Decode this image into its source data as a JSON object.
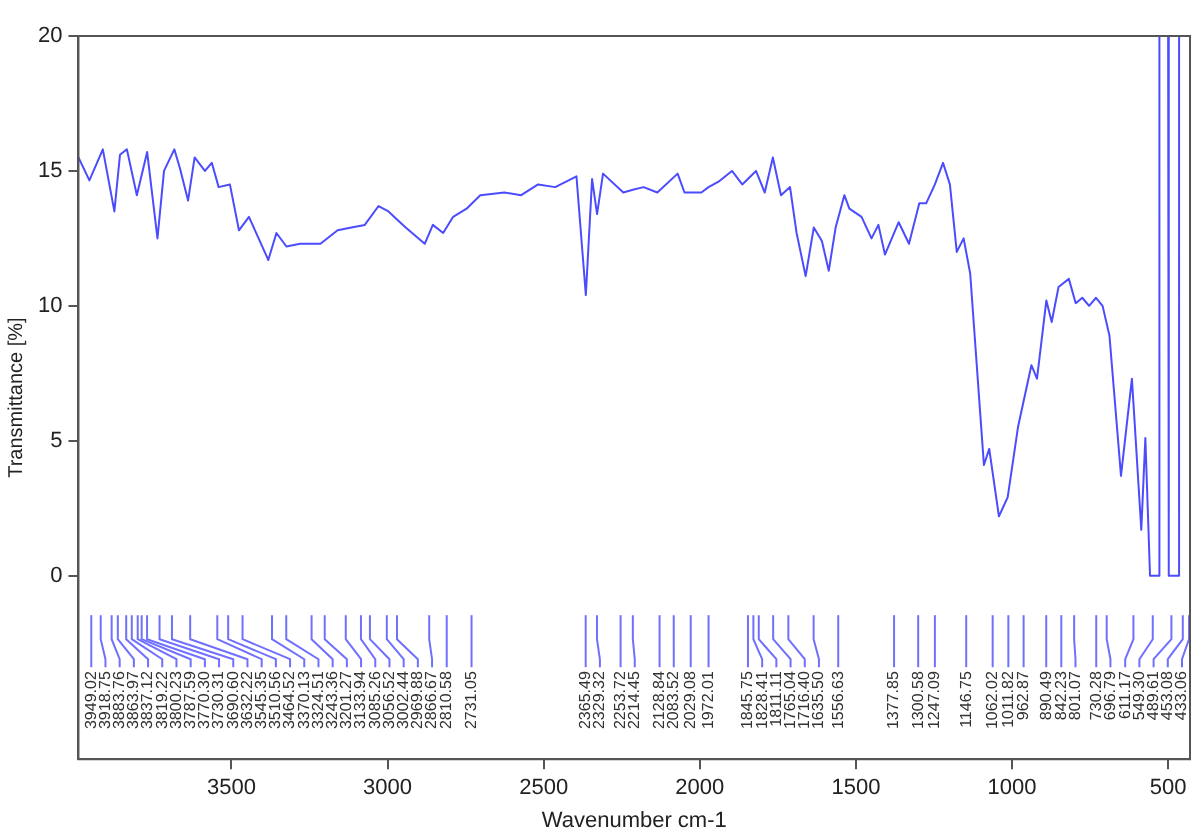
{
  "chart_data": {
    "type": "line",
    "xlabel": "Wavenumber cm-1",
    "ylabel": "Transmittance [%]",
    "xlim": [
      3990,
      430
    ],
    "ylim": [
      -6.8,
      20
    ],
    "xticks": [
      3500,
      3000,
      2500,
      2000,
      1500,
      1000,
      500
    ],
    "yticks": [
      0,
      5,
      10,
      15,
      20
    ],
    "grid": false,
    "legend": false,
    "marker": "none",
    "series": [
      {
        "color": "#4c4cff",
        "x": [
          3990,
          3955,
          3912,
          3875,
          3857,
          3835,
          3803,
          3770,
          3737,
          3716,
          3683,
          3665,
          3639,
          3618,
          3585,
          3563,
          3541,
          3505,
          3476,
          3444,
          3382,
          3356,
          3324,
          3280,
          3243.36,
          3215,
          3160,
          3116,
          3073,
          3029,
          2997,
          2969.88,
          2942,
          2881,
          2855,
          2822,
          2790,
          2747,
          2703,
          2626,
          2572,
          2518,
          2463,
          2395,
          2365,
          2345,
          2329,
          2310,
          2245,
          2214.45,
          2180,
          2136,
          2071,
          2049,
          2029.08,
          1995,
          1972.01,
          1940,
          1897,
          1864,
          1820,
          1792,
          1766,
          1740,
          1711,
          1690,
          1661,
          1635,
          1609,
          1587,
          1565,
          1537,
          1521,
          1482,
          1450,
          1428,
          1407,
          1363,
          1330,
          1297,
          1275,
          1247.09,
          1221,
          1199,
          1177,
          1155,
          1134,
          1090,
          1073,
          1042,
          1014,
          981,
          938,
          920,
          890,
          873,
          851,
          818,
          796,
          775,
          753,
          731,
          710,
          688,
          651,
          616,
          586,
          573,
          558,
          530,
          528,
          500,
          498,
          467,
          465,
          441
        ],
        "values": [
          15.5,
          14.65,
          15.8,
          13.5,
          15.6,
          15.8,
          14.1,
          15.7,
          12.5,
          15.0,
          15.8,
          15.1,
          13.9,
          15.5,
          15.0,
          15.3,
          14.4,
          14.5,
          12.8,
          13.3,
          11.7,
          12.7,
          12.2,
          12.3,
          12.3,
          12.3,
          12.8,
          12.9,
          13.0,
          13.7,
          13.5,
          13.2,
          12.9,
          12.3,
          13.0,
          12.7,
          13.3,
          13.6,
          14.1,
          14.2,
          14.1,
          14.5,
          14.4,
          14.8,
          10.4,
          14.7,
          13.4,
          14.9,
          14.2,
          14.3,
          14.4,
          14.2,
          14.9,
          14.2,
          14.2,
          14.2,
          14.4,
          14.6,
          15.0,
          14.5,
          15.0,
          14.2,
          15.5,
          14.1,
          14.4,
          12.7,
          11.1,
          12.9,
          12.4,
          11.3,
          12.9,
          14.1,
          13.6,
          13.3,
          12.5,
          13.0,
          11.9,
          13.1,
          12.3,
          13.8,
          13.8,
          14.5,
          15.3,
          14.5,
          12.0,
          12.5,
          11.2,
          4.1,
          4.7,
          2.2,
          2.9,
          5.5,
          7.8,
          7.3,
          10.2,
          9.4,
          10.7,
          11.0,
          10.1,
          10.3,
          10.0,
          10.3,
          10.0,
          8.9,
          3.7,
          7.3,
          1.7,
          5.1,
          0,
          0,
          20,
          20,
          0,
          0,
          20,
          20
        ]
      }
    ],
    "annotations": [
      {
        "text": "3949.02",
        "x": 3949.02
      },
      {
        "text": "3918.75",
        "x": 3918.75
      },
      {
        "text": "3883.76",
        "x": 3883.76
      },
      {
        "text": "3863.97",
        "x": 3863.97
      },
      {
        "text": "3837.12",
        "x": 3837.12
      },
      {
        "text": "3819.22",
        "x": 3819.22
      },
      {
        "text": "3800.23",
        "x": 3800.23
      },
      {
        "text": "3787.59",
        "x": 3787.59
      },
      {
        "text": "3770.30",
        "x": 3770.3
      },
      {
        "text": "3730.31",
        "x": 3730.31
      },
      {
        "text": "3690.60",
        "x": 3690.6
      },
      {
        "text": "3632.22",
        "x": 3632.22
      },
      {
        "text": "3545.35",
        "x": 3545.35
      },
      {
        "text": "3510.56",
        "x": 3510.56
      },
      {
        "text": "3464.52",
        "x": 3464.52
      },
      {
        "text": "3370.13",
        "x": 3370.13
      },
      {
        "text": "3324.51",
        "x": 3324.51
      },
      {
        "text": "3243.36",
        "x": 3243.36
      },
      {
        "text": "3201.27",
        "x": 3201.27
      },
      {
        "text": "3133.94",
        "x": 3133.94
      },
      {
        "text": "3085.26",
        "x": 3085.26
      },
      {
        "text": "3056.52",
        "x": 3056.52
      },
      {
        "text": "3002.44",
        "x": 3002.44
      },
      {
        "text": "2969.88",
        "x": 2969.88
      },
      {
        "text": "2866.67",
        "x": 2866.67
      },
      {
        "text": "2810.58",
        "x": 2810.58
      },
      {
        "text": "2731.05",
        "x": 2731.05
      },
      {
        "text": "2365.49",
        "x": 2365.49
      },
      {
        "text": "2329.32",
        "x": 2329.32
      },
      {
        "text": "2253.72",
        "x": 2253.72
      },
      {
        "text": "2214.45",
        "x": 2214.45
      },
      {
        "text": "2128.84",
        "x": 2128.84
      },
      {
        "text": "2083.52",
        "x": 2083.52
      },
      {
        "text": "2029.08",
        "x": 2029.08
      },
      {
        "text": "1972.01",
        "x": 1972.01
      },
      {
        "text": "1845.75",
        "x": 1845.75
      },
      {
        "text": "1828.41",
        "x": 1828.41
      },
      {
        "text": "1811.11",
        "x": 1811.11
      },
      {
        "text": "1765.04",
        "x": 1765.04
      },
      {
        "text": "1716.40",
        "x": 1716.4
      },
      {
        "text": "1635.50",
        "x": 1635.5
      },
      {
        "text": "1556.63",
        "x": 1556.63
      },
      {
        "text": "1377.85",
        "x": 1377.85
      },
      {
        "text": "1300.58",
        "x": 1300.58
      },
      {
        "text": "1247.09",
        "x": 1247.09
      },
      {
        "text": "1146.75",
        "x": 1146.75
      },
      {
        "text": "1062.02",
        "x": 1062.02
      },
      {
        "text": "1011.82",
        "x": 1011.82
      },
      {
        "text": "962.87",
        "x": 962.87
      },
      {
        "text": "890.49",
        "x": 890.49
      },
      {
        "text": "842.23",
        "x": 842.23
      },
      {
        "text": "801.07",
        "x": 801.07
      },
      {
        "text": "730.28",
        "x": 730.28
      },
      {
        "text": "696.79",
        "x": 696.79
      },
      {
        "text": "611.17",
        "x": 611.17
      },
      {
        "text": "549.30",
        "x": 549.3
      },
      {
        "text": "489.61",
        "x": 489.61
      },
      {
        "text": "453.08",
        "x": 453.08
      },
      {
        "text": "433.06",
        "x": 433.06
      }
    ]
  }
}
